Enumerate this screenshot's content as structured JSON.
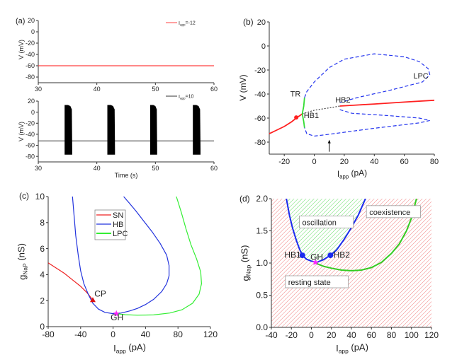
{
  "panel_labels": [
    "(a)",
    "(b)",
    "(c)",
    "(d)"
  ],
  "chart_data": [
    {
      "panel": "(a) top",
      "type": "line",
      "xlim": [
        30,
        60
      ],
      "ylim": [
        -90,
        20
      ],
      "xticks": [
        30,
        40,
        50,
        60
      ],
      "yticks": [
        20,
        0,
        -20,
        -40,
        -60,
        -80
      ],
      "xlabel": "",
      "ylabel": "V (mV)",
      "legend": [
        {
          "label": "I_app=-12",
          "color": "#ff4040"
        }
      ],
      "series": [
        {
          "name": "I_app=-12",
          "color": "#ff4040",
          "x": [
            30,
            60
          ],
          "y": [
            -60,
            -60
          ]
        }
      ]
    },
    {
      "panel": "(a) bottom",
      "type": "line",
      "xlim": [
        30,
        60
      ],
      "ylim": [
        -90,
        20
      ],
      "xticks": [
        30,
        40,
        50,
        60
      ],
      "yticks": [
        20,
        0,
        -20,
        -40,
        -60,
        -80
      ],
      "xlabel": "Time (s)",
      "ylabel": "V (mV)",
      "legend": [
        {
          "label": "I_app=10",
          "color": "#333333"
        }
      ],
      "baseline": -52,
      "bursts": [
        [
          34.5,
          35.8
        ],
        [
          41.8,
          43.1
        ],
        [
          49.1,
          50.3
        ],
        [
          56.4,
          57.7
        ]
      ],
      "burst_max": 13,
      "burst_min": -77,
      "series": [
        {
          "name": "I_app=10",
          "color": "#000000"
        }
      ]
    },
    {
      "panel": "(b)",
      "type": "line",
      "xlim": [
        -30,
        80
      ],
      "ylim": [
        -90,
        20
      ],
      "xticks": [
        -20,
        0,
        20,
        40,
        60,
        80
      ],
      "yticks": [
        20,
        0,
        -20,
        -40,
        -60,
        -80
      ],
      "xlabel": "I_app (pA)",
      "ylabel": "V (mV)",
      "series": [
        {
          "role": "stable equilibrium",
          "color": "#ff2020",
          "style": "solid",
          "x": [
            -30,
            -25,
            -20,
            -15,
            -12,
            -8
          ],
          "y": [
            -73,
            -70,
            -67,
            -63,
            -60,
            -56.5
          ]
        },
        {
          "role": "stable equilibrium",
          "color": "#ff2020",
          "style": "solid",
          "x": [
            17,
            40,
            60,
            80
          ],
          "y": [
            -50,
            -48.3,
            -46.7,
            -45.2
          ]
        },
        {
          "role": "unstable equilibrium",
          "color": "#444444",
          "style": "dashed",
          "x": [
            -8,
            0,
            10,
            17
          ],
          "y": [
            -56.5,
            -53.5,
            -51.5,
            -50
          ]
        },
        {
          "role": "TR branch",
          "color": "#33dd33",
          "style": "solid",
          "x": [
            -6.5,
            -7,
            -8,
            -7,
            -6.5
          ],
          "y": [
            -43,
            -50,
            -56.5,
            -63,
            -68
          ]
        },
        {
          "role": "unstable limit cycle max",
          "color": "#2233ee",
          "style": "dashed",
          "x": [
            -6.5,
            -5,
            0,
            10,
            20,
            40,
            60,
            70,
            76,
            77,
            72,
            50,
            30,
            17
          ],
          "y": [
            -43,
            -38,
            -30,
            -18,
            -11,
            -6.5,
            -9,
            -13,
            -19,
            -24,
            -30,
            -37,
            -42.5,
            -47
          ]
        },
        {
          "role": "unstable limit cycle min",
          "color": "#2233ee",
          "style": "dashed",
          "x": [
            17,
            25,
            50,
            70,
            77,
            70,
            40,
            10,
            0,
            -5,
            -6.5
          ],
          "y": [
            -53,
            -56,
            -58,
            -60,
            -62,
            -64,
            -68.5,
            -73.5,
            -75,
            -73,
            -68
          ]
        }
      ],
      "points": [
        {
          "x": -12,
          "y": -59.5,
          "color": "#ff2020",
          "shape": "circle"
        }
      ],
      "arrow": {
        "x": 10,
        "y_from": -88,
        "y_to": -78
      },
      "annotations": [
        {
          "text": "TR",
          "x": -16,
          "y": -42
        },
        {
          "text": "HB1",
          "x": -7,
          "y": -60
        },
        {
          "text": "HB2",
          "x": 14,
          "y": -47
        },
        {
          "text": "LPC",
          "x": 66,
          "y": -27
        }
      ]
    },
    {
      "panel": "(c)",
      "type": "line",
      "xlim": [
        -80,
        120
      ],
      "ylim": [
        0,
        10
      ],
      "xticks": [
        -80,
        -40,
        0,
        40,
        80,
        120
      ],
      "yticks": [
        0,
        2,
        4,
        6,
        8,
        10
      ],
      "xlabel": "I_app (pA)",
      "ylabel": "g_NaP (nS)",
      "legend": [
        {
          "label": "SN",
          "color": "#ee2222"
        },
        {
          "label": "HB",
          "color": "#2233dd"
        },
        {
          "label": "LPC",
          "color": "#33ee33"
        }
      ],
      "legend_position": "upper-center",
      "series": [
        {
          "name": "SN",
          "color": "#ee2222",
          "x": [
            -80,
            -70,
            -60,
            -50,
            -40,
            -32,
            -25
          ],
          "y": [
            4.9,
            4.5,
            4.1,
            3.6,
            3.1,
            2.6,
            2.05
          ]
        },
        {
          "name": "HB",
          "color": "#2233dd",
          "x": [
            -50,
            -48,
            -46,
            -43,
            -40,
            -36,
            -30,
            -25,
            -18,
            -10,
            0,
            10,
            20,
            30,
            40,
            50,
            60,
            66,
            69,
            69,
            66,
            58,
            48,
            38,
            28,
            20,
            13
          ],
          "y": [
            10,
            8.5,
            7,
            5.5,
            4.3,
            3.3,
            2.4,
            1.8,
            1.35,
            1.1,
            1.0,
            1.05,
            1.2,
            1.4,
            1.7,
            2.1,
            2.7,
            3.3,
            3.9,
            4.7,
            5.5,
            6.4,
            7.3,
            8.1,
            8.9,
            9.5,
            10
          ]
        },
        {
          "name": "LPC",
          "color": "#33ee33",
          "x": [
            4,
            15,
            30,
            50,
            70,
            85,
            98,
            106,
            109,
            108,
            103,
            96,
            90,
            84,
            78
          ],
          "y": [
            1.0,
            0.92,
            0.88,
            0.9,
            1.05,
            1.3,
            1.8,
            2.5,
            3.3,
            4.2,
            5.2,
            6.3,
            7.5,
            8.8,
            10
          ]
        }
      ],
      "points": [
        {
          "label": "CP",
          "x": -25,
          "y": 2.05,
          "color": "#dd1111",
          "shape": "triangle"
        },
        {
          "label": "GH",
          "x": 4,
          "y": 1.0,
          "color": "#ff22ff",
          "shape": "star"
        }
      ],
      "annotations": [
        {
          "text": "CP",
          "x": -23,
          "y": 2.3
        },
        {
          "text": "GH",
          "x": -3,
          "y": 0.5
        }
      ]
    },
    {
      "panel": "(d)",
      "type": "line",
      "xlim": [
        -40,
        120
      ],
      "ylim": [
        0,
        2
      ],
      "xticks": [
        -40,
        -20,
        0,
        20,
        40,
        60,
        80,
        100,
        120
      ],
      "yticks": [
        0.0,
        0.5,
        1.0,
        1.5,
        2.0
      ],
      "ytick_labels": [
        "0.0",
        "0.5",
        "1.0",
        "1.5",
        "2.0"
      ],
      "xlabel": "I_app (pA)",
      "ylabel": "g_Nap (nS)",
      "region_colors": {
        "resting": "#f08080",
        "oscillation": "#66dd66"
      },
      "series": [
        {
          "name": "HB",
          "color": "#1a2aee",
          "x": [
            -25,
            -22,
            -19,
            -15,
            -12,
            -9,
            -5,
            0,
            5,
            12,
            19,
            25,
            32,
            40,
            47,
            54
          ],
          "y": [
            2.0,
            1.75,
            1.55,
            1.35,
            1.22,
            1.12,
            1.06,
            1.03,
            1.01,
            1.05,
            1.12,
            1.2,
            1.35,
            1.55,
            1.75,
            2.0
          ]
        },
        {
          "name": "LPC",
          "color": "#33cc22",
          "x": [
            4,
            12,
            20,
            30,
            40,
            50,
            60,
            70,
            80,
            88,
            95,
            100,
            105
          ],
          "y": [
            1.0,
            0.95,
            0.92,
            0.89,
            0.88,
            0.89,
            0.93,
            1.01,
            1.15,
            1.3,
            1.5,
            1.7,
            2.0
          ]
        }
      ],
      "points": [
        {
          "label": "HB1",
          "x": -9,
          "y": 1.12,
          "color": "#1a2aee",
          "shape": "circle"
        },
        {
          "label": "HB2",
          "x": 19,
          "y": 1.12,
          "color": "#1a2aee",
          "shape": "circle"
        },
        {
          "label": "GH",
          "x": 4,
          "y": 1.01,
          "color": "#ff22ff",
          "shape": "star"
        }
      ],
      "annotations": [
        {
          "text": "HB1",
          "x": -27,
          "y": 1.08
        },
        {
          "text": "HB2",
          "x": 22,
          "y": 1.08
        },
        {
          "text": "GH",
          "x": -1,
          "y": 1.05
        }
      ],
      "region_labels": [
        {
          "text": "oscillation",
          "x": -12,
          "y": 1.6
        },
        {
          "text": "coexistence",
          "x": 55,
          "y": 1.76
        },
        {
          "text": "resting state",
          "x": -26,
          "y": 0.67
        }
      ]
    }
  ]
}
